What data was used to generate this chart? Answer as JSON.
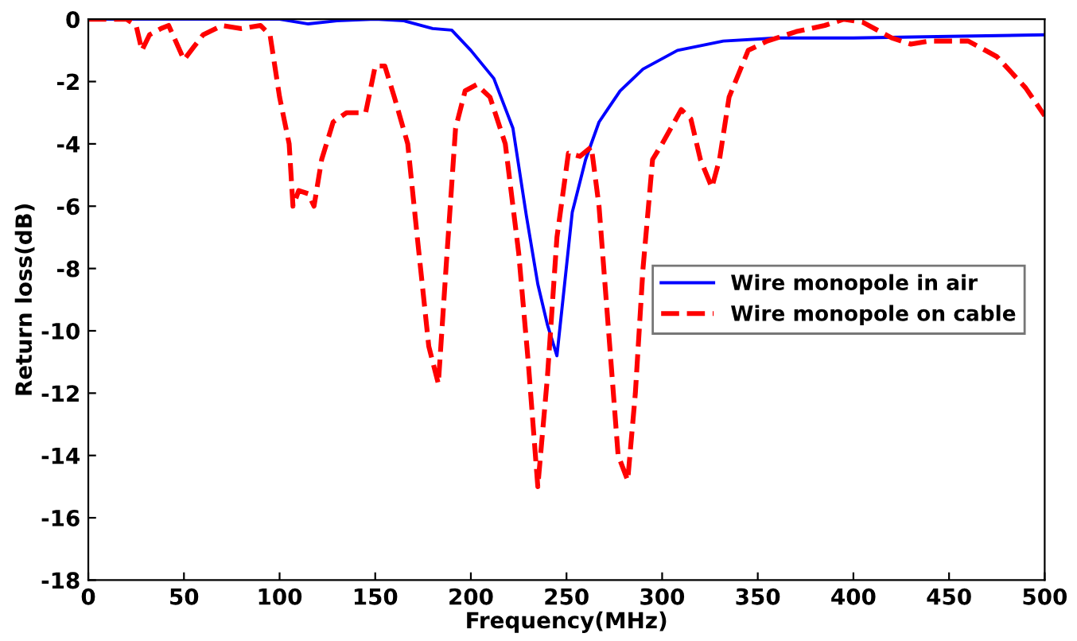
{
  "chart_data": {
    "type": "line",
    "xlabel": "Frequency(MHz)",
    "ylabel": "Return loss(dB)",
    "xlim": [
      0,
      500
    ],
    "ylim": [
      -18,
      0
    ],
    "xticks": [
      0,
      50,
      100,
      150,
      200,
      250,
      300,
      350,
      400,
      450,
      500
    ],
    "yticks": [
      -18,
      -16,
      -14,
      -12,
      -10,
      -8,
      -6,
      -4,
      -2,
      0
    ],
    "grid": false,
    "legend": "right",
    "series": [
      {
        "name": "Wire monopole in air",
        "color": "#0000ff",
        "line_style": "solid",
        "x": [
          0,
          50,
          100,
          115,
          130,
          150,
          165,
          180,
          190,
          200,
          212,
          222,
          229,
          235,
          240,
          245,
          249,
          253,
          260,
          267,
          278,
          290,
          308,
          332,
          360,
          400,
          450,
          500
        ],
        "values": [
          0,
          0,
          0,
          -0.15,
          -0.05,
          0,
          -0.05,
          -0.3,
          -0.35,
          -1.0,
          -1.9,
          -3.5,
          -6.3,
          -8.5,
          -9.8,
          -10.8,
          -8.5,
          -6.2,
          -4.5,
          -3.3,
          -2.3,
          -1.6,
          -1.0,
          -0.7,
          -0.6,
          -0.6,
          -0.55,
          -0.5
        ]
      },
      {
        "name": "Wire monopole on cable",
        "color": "#ff0000",
        "line_style": "dashed",
        "x": [
          0,
          20,
          25,
          28,
          32,
          38,
          42,
          50,
          55,
          60,
          70,
          80,
          90,
          95,
          100,
          105,
          107,
          110,
          115,
          118,
          122,
          128,
          135,
          145,
          150,
          155,
          160,
          167,
          172,
          178,
          183,
          187,
          192,
          197,
          203,
          210,
          218,
          225,
          230,
          235,
          240,
          245,
          251,
          257,
          263,
          267,
          272,
          277,
          282,
          286,
          290,
          295,
          300,
          310,
          315,
          320,
          326,
          330,
          335,
          345,
          355,
          370,
          385,
          395,
          405,
          420,
          430,
          440,
          460,
          475,
          490,
          500
        ],
        "values": [
          0,
          0,
          -0.2,
          -1.0,
          -0.5,
          -0.3,
          -0.2,
          -1.3,
          -0.9,
          -0.5,
          -0.2,
          -0.3,
          -0.2,
          -0.5,
          -2.5,
          -4.0,
          -6.0,
          -5.5,
          -5.6,
          -6.0,
          -4.5,
          -3.3,
          -3.0,
          -3.0,
          -1.5,
          -1.5,
          -2.5,
          -4.0,
          -7.0,
          -10.5,
          -11.7,
          -8.0,
          -3.5,
          -2.3,
          -2.1,
          -2.5,
          -4.0,
          -7.5,
          -11.0,
          -15.0,
          -11.5,
          -7.0,
          -4.3,
          -4.4,
          -4.1,
          -6.0,
          -10.0,
          -14.0,
          -14.8,
          -12.0,
          -8.0,
          -4.5,
          -4.0,
          -2.9,
          -3.2,
          -4.5,
          -5.4,
          -4.5,
          -2.5,
          -1.0,
          -0.7,
          -0.4,
          -0.2,
          0,
          -0.1,
          -0.6,
          -0.8,
          -0.7,
          -0.7,
          -1.2,
          -2.2,
          -3.1
        ]
      }
    ]
  }
}
